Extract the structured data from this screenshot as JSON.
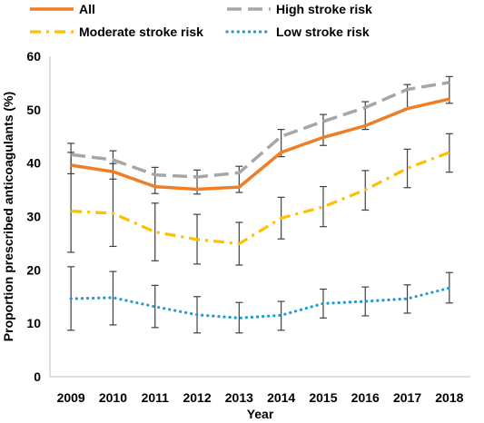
{
  "chart_data": {
    "type": "line",
    "title": "",
    "xlabel": "Year",
    "ylabel": "Proportion prescribed anticoagulants (%)",
    "categories": [
      "2009",
      "2010",
      "2011",
      "2012",
      "2013",
      "2014",
      "2015",
      "2016",
      "2017",
      "2018"
    ],
    "ylim": [
      0,
      60
    ],
    "yticks": [
      0,
      10,
      20,
      30,
      40,
      50,
      60
    ],
    "grid": false,
    "legend_position": "top",
    "series": [
      {
        "name": "All",
        "color": "#F07E26",
        "style": "solid",
        "values": [
          39.6,
          38.4,
          35.6,
          35.1,
          35.5,
          42.0,
          44.8,
          47.0,
          50.2,
          52.0
        ],
        "error_low": [
          39.6,
          38.4,
          35.6,
          35.1,
          35.5,
          42.0,
          44.8,
          47.0,
          50.2,
          52.0
        ],
        "error_high": [
          39.6,
          38.4,
          35.6,
          35.1,
          35.5,
          42.0,
          44.8,
          47.0,
          50.2,
          52.0
        ]
      },
      {
        "name": "High stroke risk",
        "color": "#A6A6A6",
        "style": "long-dash",
        "values": [
          41.6,
          40.6,
          37.8,
          37.4,
          38.2,
          45.0,
          47.8,
          50.4,
          53.8,
          55.1
        ],
        "error_low": [
          38.0,
          37.0,
          34.3,
          34.2,
          34.5,
          41.2,
          43.3,
          46.3,
          50.2,
          51.2
        ],
        "error_high": [
          43.7,
          42.3,
          39.2,
          38.7,
          39.4,
          46.3,
          49.1,
          51.5,
          54.7,
          56.2
        ]
      },
      {
        "name": "Moderate stroke risk",
        "color": "#FFC000",
        "style": "dash-dot",
        "values": [
          31.0,
          30.6,
          27.1,
          25.7,
          24.9,
          29.7,
          31.8,
          35.0,
          39.0,
          42.0
        ],
        "error_low": [
          23.3,
          24.4,
          21.7,
          21.1,
          20.9,
          25.8,
          28.1,
          31.2,
          35.4,
          38.3
        ],
        "error_high": [
          42.0,
          39.9,
          32.5,
          30.4,
          28.9,
          33.6,
          35.6,
          38.6,
          42.6,
          45.5
        ]
      },
      {
        "name": "Low stroke risk",
        "color": "#1F9BD4",
        "style": "dotted",
        "values": [
          14.6,
          14.8,
          13.1,
          11.6,
          11.0,
          11.5,
          13.7,
          14.1,
          14.6,
          16.6
        ],
        "error_low": [
          8.7,
          9.7,
          9.2,
          8.2,
          8.2,
          8.7,
          11.0,
          11.4,
          11.9,
          13.8
        ],
        "error_high": [
          20.6,
          19.7,
          17.1,
          15.0,
          13.9,
          14.1,
          16.4,
          16.8,
          17.2,
          19.5
        ]
      }
    ]
  }
}
